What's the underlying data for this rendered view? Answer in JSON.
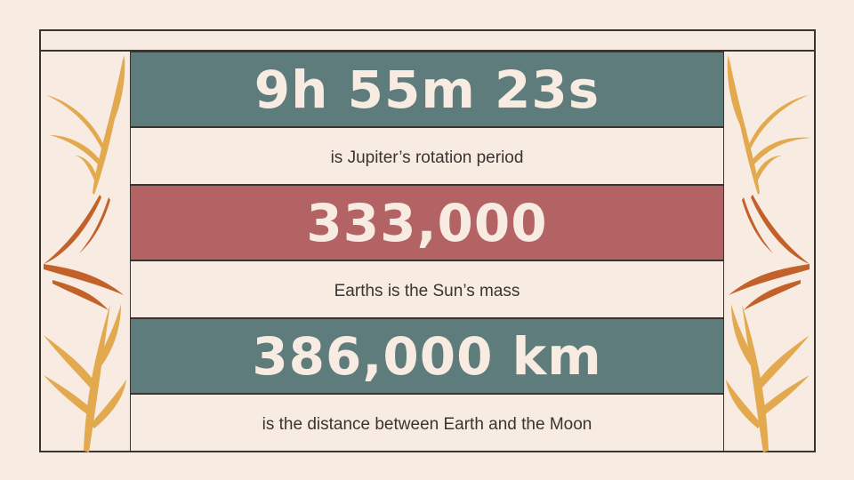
{
  "stats": [
    {
      "value": "9h 55m 23s",
      "caption": "is Jupiter’s rotation period"
    },
    {
      "value": "333,000",
      "caption": "Earths is the Sun’s mass"
    },
    {
      "value": "386,000 km",
      "caption": "is the distance between Earth and the Moon"
    }
  ],
  "colors": {
    "background": "#f8ebe2",
    "teal_band": "#5e7c7c",
    "rose_band": "#b46365",
    "frame": "#3a3431",
    "leaf_gold": "#e2a94f",
    "leaf_rust": "#c2622a"
  },
  "decorations": {
    "left": "leaf-branch-icon",
    "right": "leaf-branch-icon"
  }
}
